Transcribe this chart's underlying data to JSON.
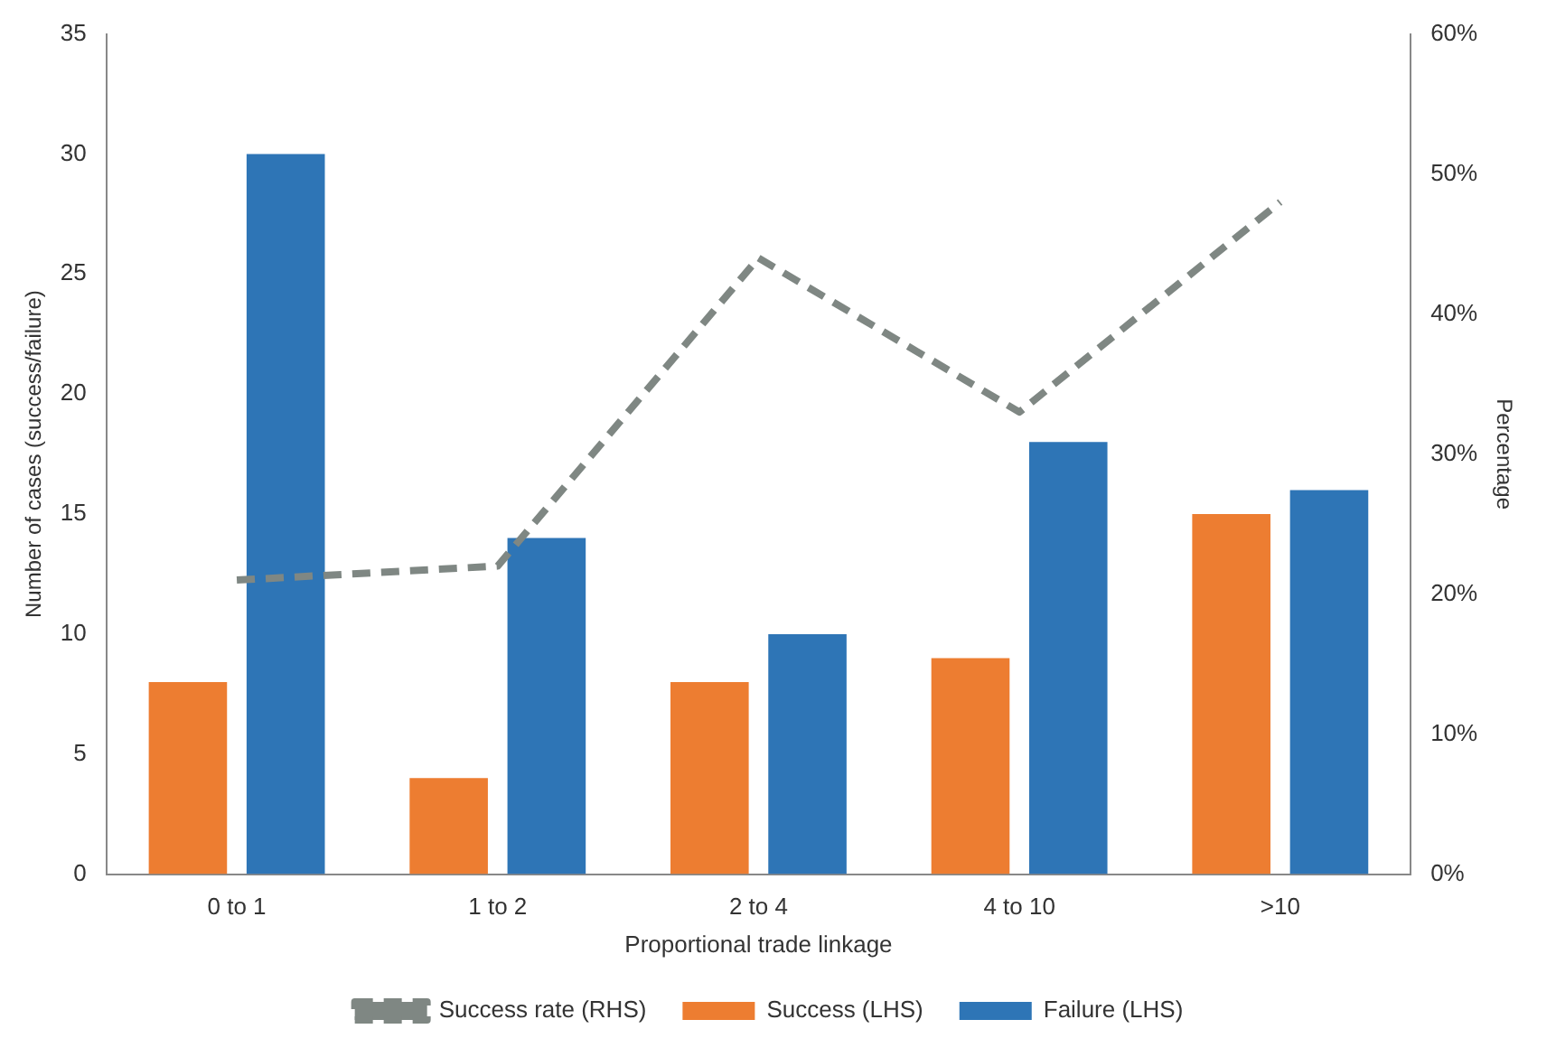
{
  "chart_data": {
    "type": "bar",
    "categories": [
      "0 to 1",
      "1 to 2",
      "2 to 4",
      "4 to 10",
      ">10"
    ],
    "xlabel": "Proportional trade linkage",
    "ylabel": "Number of cases (success/failure)",
    "y2label": "Percentage",
    "series": [
      {
        "name": "Success (LHS)",
        "color": "#ed7d31",
        "values": [
          8,
          4,
          8,
          9,
          15
        ]
      },
      {
        "name": "Failure (LHS)",
        "color": "#2e75b6",
        "values": [
          30,
          14,
          10,
          18,
          16
        ]
      },
      {
        "name": "Success rate (RHS)",
        "type": "line",
        "axis": "y2",
        "color": "#7f8783",
        "line_style": "dashed",
        "marker": "none",
        "values": [
          21,
          22,
          44,
          33,
          48
        ]
      }
    ],
    "ylim": [
      0,
      35
    ],
    "yticks": [
      0,
      5,
      10,
      15,
      20,
      25,
      30,
      35
    ],
    "y2lim": [
      0,
      60
    ],
    "y2ticks": [
      {
        "value": 0,
        "label": "0%"
      },
      {
        "value": 10,
        "label": "10%"
      },
      {
        "value": 20,
        "label": "20%"
      },
      {
        "value": 30,
        "label": "30%"
      },
      {
        "value": 40,
        "label": "40%"
      },
      {
        "value": 50,
        "label": "50%"
      },
      {
        "value": 60,
        "label": "60%"
      }
    ],
    "grid": false,
    "legend": "bottom"
  }
}
